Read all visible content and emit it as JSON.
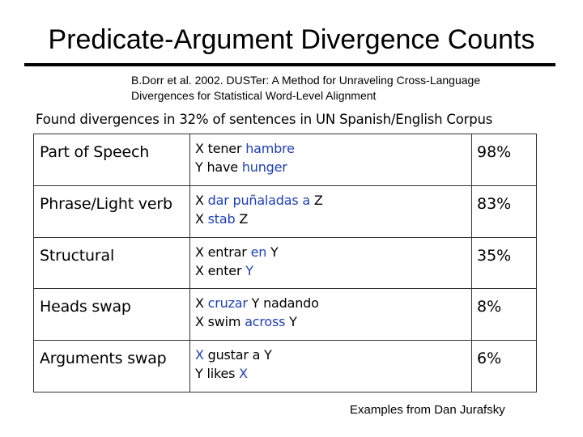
{
  "slide": {
    "title": "Predicate-Argument Divergence Counts",
    "citation_line1": "B.Dorr et al. 2002. DUSTer: A Method for Unraveling Cross-Language",
    "citation_line2": "Divergences for Statistical Word-Level Alignment",
    "finding": "Found divergences in 32% of sentences in UN Spanish/English Corpus",
    "footer": "Examples from Dan Jurafsky"
  },
  "colors": {
    "highlight": "#1f3fb4",
    "text": "#000000"
  },
  "rows": [
    {
      "type": "Part of Speech",
      "spanish": [
        {
          "t": "X tener ",
          "hl": false
        },
        {
          "t": "hambre",
          "hl": true
        }
      ],
      "english": [
        {
          "t": "Y have ",
          "hl": false
        },
        {
          "t": "hunger",
          "hl": true
        }
      ],
      "percent": "98%"
    },
    {
      "type": "Phrase/Light verb",
      "spanish": [
        {
          "t": "X ",
          "hl": false
        },
        {
          "t": "dar puñaladas a",
          "hl": true
        },
        {
          "t": " Z",
          "hl": false
        }
      ],
      "english": [
        {
          "t": "X ",
          "hl": false
        },
        {
          "t": "stab",
          "hl": true
        },
        {
          "t": " Z",
          "hl": false
        }
      ],
      "percent": "83%"
    },
    {
      "type": "Structural",
      "spanish": [
        {
          "t": "X entrar ",
          "hl": false
        },
        {
          "t": "en",
          "hl": true
        },
        {
          "t": " Y",
          "hl": false
        }
      ],
      "english": [
        {
          "t": "X enter ",
          "hl": false
        },
        {
          "t": "Y",
          "hl": true
        }
      ],
      "percent": "35%"
    },
    {
      "type": "Heads swap",
      "spanish": [
        {
          "t": "X ",
          "hl": false
        },
        {
          "t": "cruzar",
          "hl": true
        },
        {
          "t": " Y nadando",
          "hl": false
        }
      ],
      "english": [
        {
          "t": "X swim ",
          "hl": false
        },
        {
          "t": "across",
          "hl": true
        },
        {
          "t": " Y",
          "hl": false
        }
      ],
      "percent": "8%"
    },
    {
      "type": "Arguments swap",
      "spanish": [
        {
          "t": "X",
          "hl": true
        },
        {
          "t": " gustar a Y",
          "hl": false
        }
      ],
      "english": [
        {
          "t": "Y likes ",
          "hl": false
        },
        {
          "t": "X",
          "hl": true
        }
      ],
      "percent": "6%"
    }
  ]
}
